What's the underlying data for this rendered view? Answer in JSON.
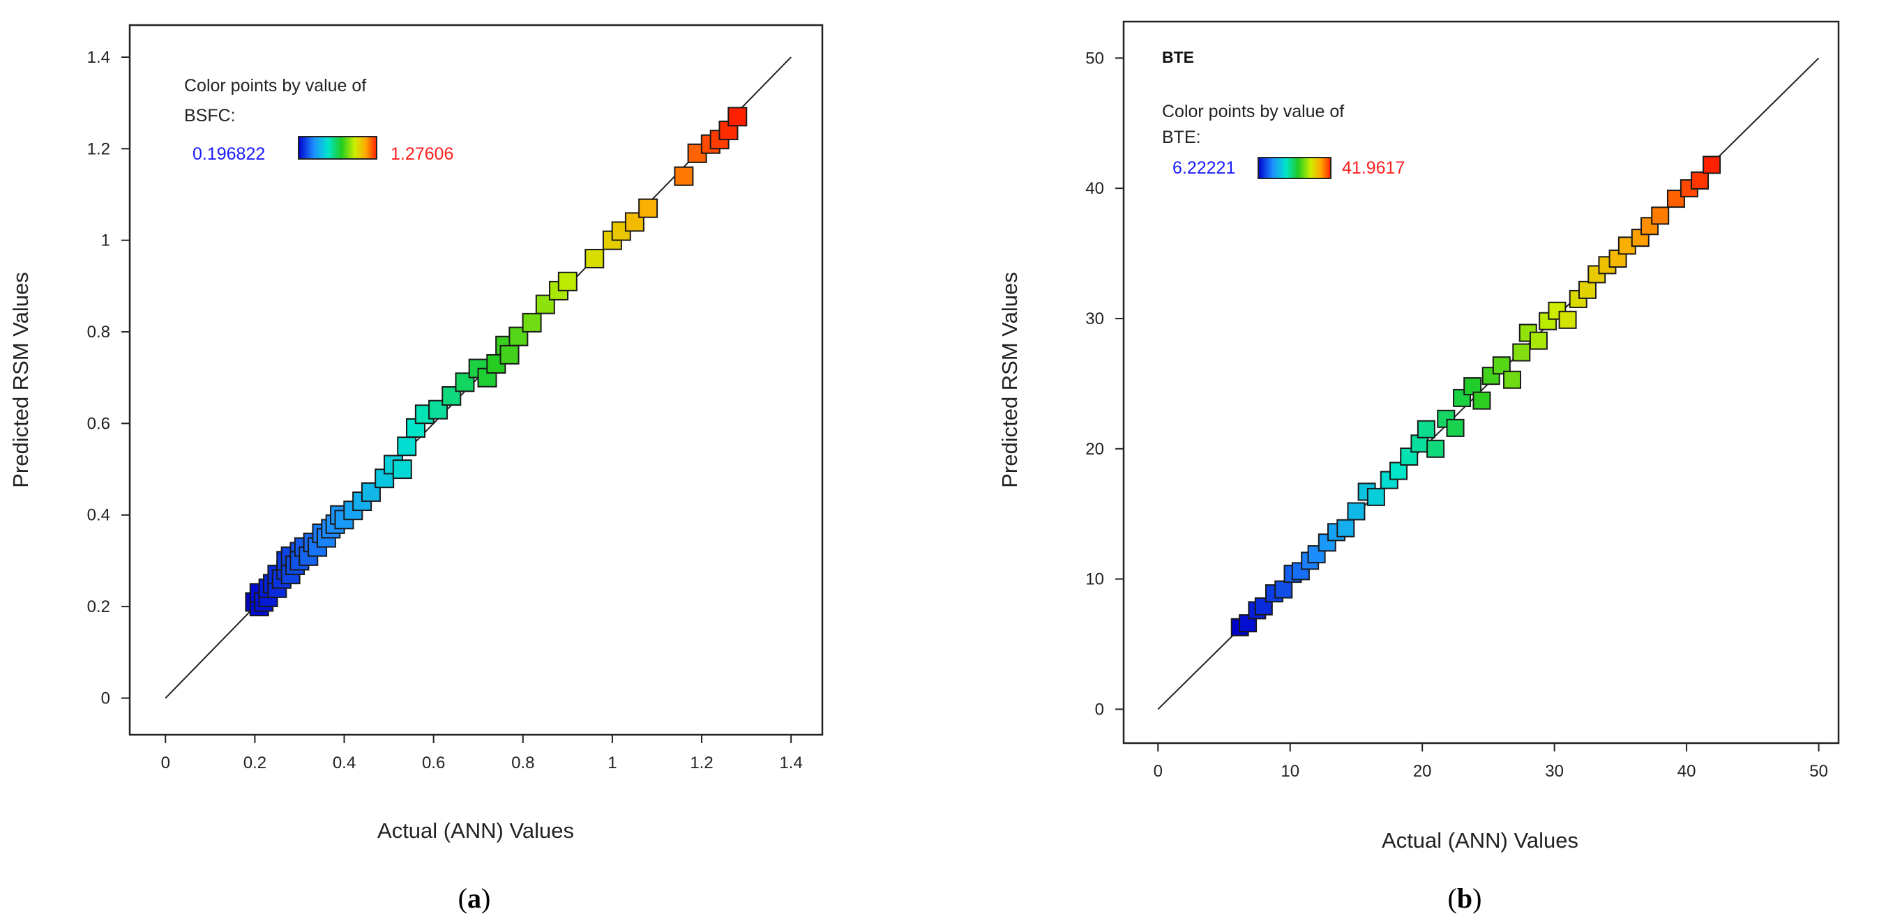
{
  "colors": {
    "low": "#1a1aff",
    "high": "#ff2020",
    "gradient": [
      "#0000cc",
      "#1e90ff",
      "#00e5cc",
      "#22cc22",
      "#ccee00",
      "#ffaa00",
      "#ff2000"
    ]
  },
  "panels": [
    {
      "caption_letter": "a",
      "legend": {
        "title": "",
        "line1": "Color points by value of",
        "line2": "BSFC:",
        "min_label": "0.196822",
        "max_label": "1.27606"
      },
      "chart_data": {
        "type": "scatter",
        "xlabel": "Actual (ANN) Values",
        "ylabel": "Predicted RSM Values",
        "xlim": [
          -0.08,
          1.47
        ],
        "ylim": [
          -0.08,
          1.47
        ],
        "xticks": [
          "0",
          "0.2",
          "0.4",
          "0.6",
          "0.8",
          "1",
          "1.2",
          "1.4"
        ],
        "yticks": [
          "0",
          "0.2",
          "0.4",
          "0.6",
          "0.8",
          "1",
          "1.2",
          "1.4"
        ],
        "xtick_values": [
          0,
          0.2,
          0.4,
          0.6,
          0.8,
          1,
          1.2,
          1.4
        ],
        "ytick_values": [
          0,
          0.2,
          0.4,
          0.6,
          0.8,
          1,
          1.2,
          1.4
        ],
        "reference_line": [
          0,
          1.4
        ],
        "color_range": [
          0.196822,
          1.27606
        ],
        "x": [
          0.2,
          0.21,
          0.21,
          0.22,
          0.23,
          0.23,
          0.24,
          0.25,
          0.25,
          0.26,
          0.27,
          0.27,
          0.28,
          0.28,
          0.29,
          0.3,
          0.3,
          0.31,
          0.32,
          0.33,
          0.34,
          0.35,
          0.36,
          0.37,
          0.38,
          0.39,
          0.4,
          0.42,
          0.44,
          0.46,
          0.49,
          0.51,
          0.53,
          0.54,
          0.56,
          0.58,
          0.61,
          0.64,
          0.67,
          0.7,
          0.72,
          0.74,
          0.76,
          0.77,
          0.79,
          0.82,
          0.85,
          0.88,
          0.9,
          0.96,
          1.0,
          1.02,
          1.05,
          1.08,
          1.16,
          1.19,
          1.22,
          1.24,
          1.26,
          1.28
        ],
        "y": [
          0.21,
          0.2,
          0.23,
          0.21,
          0.22,
          0.24,
          0.25,
          0.24,
          0.27,
          0.26,
          0.28,
          0.3,
          0.27,
          0.31,
          0.29,
          0.32,
          0.3,
          0.33,
          0.31,
          0.34,
          0.33,
          0.36,
          0.35,
          0.37,
          0.38,
          0.4,
          0.39,
          0.41,
          0.43,
          0.45,
          0.48,
          0.51,
          0.5,
          0.55,
          0.59,
          0.62,
          0.63,
          0.66,
          0.69,
          0.72,
          0.7,
          0.73,
          0.77,
          0.75,
          0.79,
          0.82,
          0.86,
          0.89,
          0.91,
          0.96,
          1.0,
          1.02,
          1.04,
          1.07,
          1.14,
          1.19,
          1.21,
          1.22,
          1.24,
          1.27
        ]
      }
    },
    {
      "caption_letter": "b",
      "legend": {
        "title": "BTE",
        "line1": "Color points by value of",
        "line2": "BTE:",
        "min_label": "6.22221",
        "max_label": "41.9617"
      },
      "chart_data": {
        "type": "scatter",
        "xlabel": "Actual (ANN) Values",
        "ylabel": "Predicted RSM Values",
        "xlim": [
          -2.6,
          51.5
        ],
        "ylim": [
          -2.6,
          52.8
        ],
        "xticks": [
          "0",
          "10",
          "20",
          "30",
          "40",
          "50"
        ],
        "yticks": [
          "0",
          "10",
          "20",
          "30",
          "40",
          "50"
        ],
        "xtick_values": [
          0,
          10,
          20,
          30,
          40,
          50
        ],
        "ytick_values": [
          0,
          10,
          20,
          30,
          40,
          50
        ],
        "reference_line": [
          0,
          50
        ],
        "color_range": [
          6.22221,
          41.9617
        ],
        "x": [
          6.2,
          6.8,
          7.5,
          8.0,
          8.8,
          9.5,
          10.2,
          10.8,
          11.5,
          12.0,
          12.8,
          13.5,
          14.2,
          15.0,
          15.8,
          16.5,
          17.5,
          18.2,
          19.0,
          19.8,
          20.3,
          21.0,
          21.8,
          22.5,
          23.0,
          23.8,
          24.5,
          25.2,
          26.0,
          26.8,
          27.5,
          28.0,
          28.8,
          29.5,
          30.2,
          31.0,
          31.8,
          32.5,
          33.2,
          34.0,
          34.8,
          35.5,
          36.5,
          37.2,
          38.0,
          39.2,
          40.2,
          41.0,
          41.9
        ],
        "y": [
          6.3,
          6.6,
          7.6,
          7.9,
          8.9,
          9.2,
          10.4,
          10.6,
          11.4,
          11.9,
          12.8,
          13.6,
          13.9,
          15.2,
          16.7,
          16.3,
          17.6,
          18.3,
          19.4,
          20.4,
          21.5,
          20.0,
          22.3,
          21.6,
          23.9,
          24.8,
          23.7,
          25.6,
          26.4,
          25.3,
          27.4,
          28.9,
          28.3,
          29.8,
          30.6,
          29.9,
          31.5,
          32.2,
          33.4,
          34.1,
          34.6,
          35.6,
          36.2,
          37.1,
          37.9,
          39.2,
          40.0,
          40.6,
          41.8
        ]
      }
    }
  ]
}
